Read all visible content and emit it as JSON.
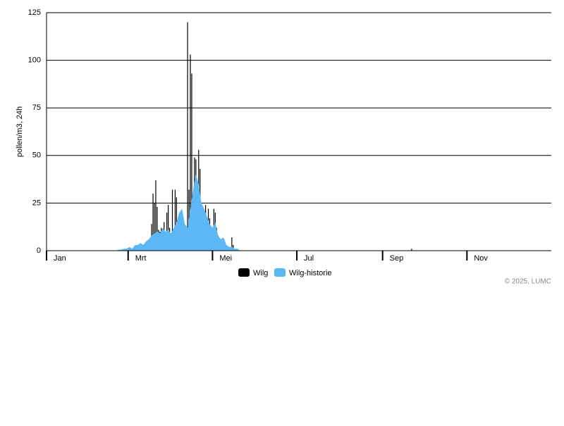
{
  "chart_data": {
    "type": "bar",
    "ylabel": "pollen/m3, 24h",
    "credit": "© 2025, LUMC",
    "xlim": [
      0,
      365
    ],
    "xticks": [
      {
        "value": 0,
        "label": "Jan"
      },
      {
        "value": 59,
        "label": "Mrt"
      },
      {
        "value": 120,
        "label": "Mei"
      },
      {
        "value": 181,
        "label": "Jul"
      },
      {
        "value": 243,
        "label": "Sep"
      },
      {
        "value": 304,
        "label": "Nov"
      }
    ],
    "ylim": [
      0,
      125
    ],
    "yticks": [
      0,
      25,
      50,
      75,
      100,
      125
    ],
    "grid": true,
    "legend": "bottom",
    "series": [
      {
        "name": "Wilg",
        "color": "#000000",
        "kind": "bar",
        "x": [
          64,
          65,
          66,
          67,
          68,
          69,
          70,
          71,
          72,
          73,
          74,
          75,
          76,
          77,
          78,
          79,
          80,
          81,
          82,
          83,
          84,
          85,
          86,
          87,
          88,
          89,
          90,
          91,
          92,
          93,
          94,
          95,
          96,
          97,
          98,
          99,
          100,
          101,
          102,
          103,
          104,
          105,
          106,
          107,
          108,
          109,
          110,
          111,
          112,
          113,
          114,
          115,
          116,
          117,
          118,
          119,
          120,
          121,
          122,
          123,
          124,
          125,
          126,
          127,
          128,
          129,
          130,
          131,
          132,
          133,
          134,
          135,
          136,
          264
        ],
        "values": [
          0,
          1,
          1,
          2,
          3,
          3,
          2,
          1,
          2,
          3,
          5,
          6,
          14,
          30,
          25,
          37,
          23,
          11,
          10,
          12,
          8,
          15,
          10,
          20,
          24,
          12,
          9,
          32,
          6,
          32,
          28,
          14,
          9,
          12,
          7,
          10,
          5,
          6,
          120,
          32,
          103,
          93,
          20,
          49,
          48,
          25,
          53,
          43,
          20,
          10,
          8,
          24,
          12,
          22,
          17,
          12,
          10,
          22,
          20,
          12,
          8,
          5,
          4,
          3,
          2,
          3,
          2,
          1,
          1,
          1,
          7,
          3,
          1,
          1
        ]
      },
      {
        "name": "Wilg-historie",
        "color": "#5bb8f5",
        "kind": "area",
        "x": [
          50,
          52,
          54,
          56,
          58,
          60,
          62,
          64,
          66,
          68,
          70,
          72,
          74,
          76,
          78,
          80,
          82,
          84,
          86,
          88,
          90,
          92,
          94,
          96,
          98,
          100,
          102,
          104,
          106,
          108,
          110,
          112,
          114,
          116,
          118,
          120,
          122,
          124,
          126,
          128,
          130,
          132,
          134,
          136,
          138,
          140,
          142
        ],
        "values": [
          0,
          0.5,
          0.5,
          1,
          1,
          2,
          1,
          3,
          3,
          4,
          3,
          5,
          6,
          8,
          9,
          10,
          9,
          12,
          10,
          11,
          9,
          12,
          15,
          20,
          22,
          14,
          12,
          22,
          32,
          40,
          35,
          25,
          22,
          18,
          14,
          12,
          15,
          8,
          6,
          7,
          3,
          2,
          2,
          1,
          1,
          0,
          0
        ]
      }
    ]
  }
}
